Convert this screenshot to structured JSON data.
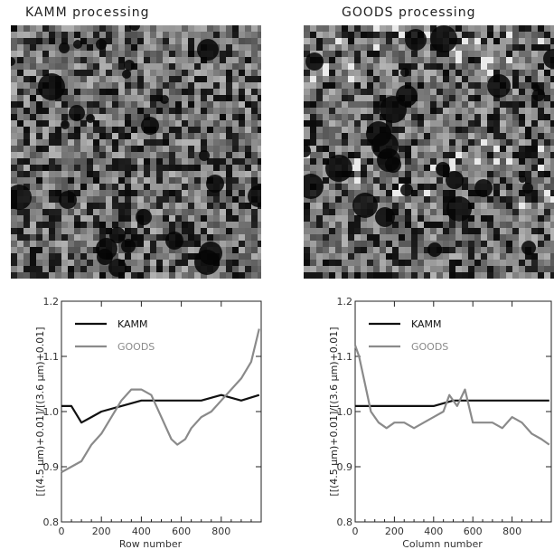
{
  "panels": {
    "top_left_title": "KAMM processing",
    "top_right_title": "GOODS processing"
  },
  "chart_data": [
    {
      "type": "line",
      "xlabel": "Row number",
      "ylabel": "[[(4.5 μm)+0.01]/[(3.6 μm)+0.01]",
      "xlim": [
        0,
        1000
      ],
      "ylim": [
        0.8,
        1.2
      ],
      "xticks": [
        0,
        200,
        400,
        600,
        800
      ],
      "yticks": [
        0.8,
        0.9,
        1.0,
        1.1,
        1.2
      ],
      "legend_placement": "top-left",
      "series": [
        {
          "name": "KAMM",
          "color": "#111111",
          "x": [
            0,
            50,
            100,
            150,
            200,
            300,
            400,
            500,
            600,
            700,
            800,
            900,
            990
          ],
          "y": [
            1.01,
            1.01,
            0.98,
            0.99,
            1.0,
            1.01,
            1.02,
            1.02,
            1.02,
            1.02,
            1.03,
            1.02,
            1.03
          ]
        },
        {
          "name": "GOODS",
          "color": "#8a8a8a",
          "x": [
            0,
            50,
            100,
            150,
            200,
            250,
            300,
            350,
            400,
            450,
            500,
            550,
            580,
            620,
            650,
            700,
            750,
            800,
            850,
            900,
            950,
            990
          ],
          "y": [
            0.89,
            0.9,
            0.91,
            0.94,
            0.96,
            0.99,
            1.02,
            1.04,
            1.04,
            1.03,
            0.99,
            0.95,
            0.94,
            0.95,
            0.97,
            0.99,
            1.0,
            1.02,
            1.04,
            1.06,
            1.09,
            1.15
          ]
        }
      ]
    },
    {
      "type": "line",
      "xlabel": "Column number",
      "ylabel": "[[(4.5 μm)+0.01]/[(3.6 μm)+0.01]",
      "xlim": [
        0,
        1000
      ],
      "ylim": [
        0.8,
        1.2
      ],
      "xticks": [
        0,
        200,
        400,
        600,
        800
      ],
      "yticks": [
        0.8,
        0.9,
        1.0,
        1.1,
        1.2
      ],
      "legend_placement": "top-left",
      "series": [
        {
          "name": "KAMM",
          "color": "#111111",
          "x": [
            0,
            100,
            200,
            300,
            400,
            500,
            600,
            700,
            800,
            900,
            990
          ],
          "y": [
            1.01,
            1.01,
            1.01,
            1.01,
            1.01,
            1.02,
            1.02,
            1.02,
            1.02,
            1.02,
            1.02
          ]
        },
        {
          "name": "GOODS",
          "color": "#8a8a8a",
          "x": [
            0,
            20,
            50,
            80,
            120,
            160,
            200,
            250,
            300,
            350,
            400,
            450,
            480,
            520,
            560,
            600,
            650,
            700,
            750,
            800,
            850,
            900,
            950,
            990
          ],
          "y": [
            1.12,
            1.1,
            1.05,
            1.0,
            0.98,
            0.97,
            0.98,
            0.98,
            0.97,
            0.98,
            0.99,
            1.0,
            1.03,
            1.01,
            1.04,
            0.98,
            0.98,
            0.98,
            0.97,
            0.99,
            0.98,
            0.96,
            0.95,
            0.94
          ]
        }
      ]
    }
  ]
}
